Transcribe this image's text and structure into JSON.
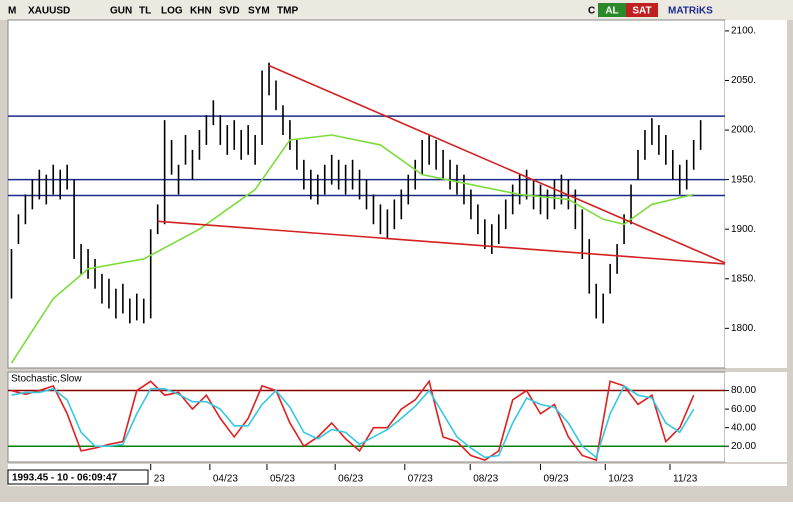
{
  "toolbar": {
    "logo": "M",
    "symbol": "XAUUSD",
    "buttons": [
      "GUN",
      "TL",
      "LOG",
      "KHN",
      "SVD",
      "SYM",
      "TMP"
    ],
    "c": "C",
    "buy": "AL",
    "sell": "SAT",
    "brand": "MATRiKS"
  },
  "status": "1993.45 - 10 - 06:09:47",
  "chart_data": [
    {
      "type": "ohlc",
      "color": "#000000",
      "xlim": [
        -0.5,
        102.5
      ],
      "xticks": [
        {
          "value": 20,
          "label": "23"
        },
        {
          "value": 28.5,
          "label": "04/23"
        },
        {
          "value": 36.7,
          "label": "05/23"
        },
        {
          "value": 46.5,
          "label": "06/23"
        },
        {
          "value": 56.5,
          "label": "07/23"
        },
        {
          "value": 65.9,
          "label": "08/23"
        },
        {
          "value": 76,
          "label": "09/23"
        },
        {
          "value": 85.3,
          "label": "10/23"
        },
        {
          "value": 94.6,
          "label": "11/23"
        }
      ],
      "ylim": [
        1760,
        2111
      ],
      "yticks": [
        {
          "value": 1800,
          "label": "1800."
        },
        {
          "value": 1850,
          "label": "1850."
        },
        {
          "value": 1900,
          "label": "1900."
        },
        {
          "value": 1950,
          "label": "1950."
        },
        {
          "value": 2000,
          "label": "2000."
        },
        {
          "value": 2050,
          "label": "2050."
        },
        {
          "value": 2100,
          "label": "2100."
        }
      ],
      "high": [
        1880,
        1915,
        1935,
        1950,
        1960,
        1955,
        1965,
        1960,
        1965,
        1950,
        1885,
        1880,
        1870,
        1855,
        1850,
        1840,
        1845,
        1830,
        1835,
        1830,
        1900,
        1925,
        2010,
        1990,
        1965,
        1995,
        1980,
        2000,
        2015,
        2030,
        2015,
        2005,
        2010,
        2000,
        2005,
        1995,
        2060,
        2068,
        2050,
        2025,
        2010,
        1990,
        1970,
        1960,
        1955,
        1965,
        1975,
        1970,
        1965,
        1970,
        1960,
        1950,
        1935,
        1925,
        1920,
        1930,
        1940,
        1955,
        1970,
        1990,
        1995,
        1990,
        1980,
        1970,
        1965,
        1955,
        1940,
        1925,
        1910,
        1905,
        1915,
        1930,
        1945,
        1955,
        1960,
        1950,
        1945,
        1940,
        1950,
        1955,
        1950,
        1940,
        1920,
        1890,
        1845,
        1835,
        1865,
        1885,
        1915,
        1945,
        1980,
        2000,
        2012,
        2005,
        1995,
        1980,
        1965,
        1970,
        1990,
        2010
      ],
      "low": [
        1830,
        1885,
        1905,
        1920,
        1930,
        1925,
        1935,
        1930,
        1940,
        1870,
        1855,
        1850,
        1840,
        1825,
        1820,
        1810,
        1815,
        1805,
        1808,
        1805,
        1810,
        1895,
        1905,
        1955,
        1935,
        1965,
        1950,
        1970,
        1985,
        2005,
        1985,
        1975,
        1980,
        1970,
        1975,
        1965,
        1985,
        2035,
        2020,
        1995,
        1980,
        1960,
        1940,
        1930,
        1925,
        1935,
        1945,
        1940,
        1935,
        1940,
        1930,
        1920,
        1905,
        1895,
        1890,
        1900,
        1910,
        1925,
        1940,
        1955,
        1965,
        1960,
        1950,
        1940,
        1935,
        1925,
        1910,
        1895,
        1880,
        1875,
        1885,
        1900,
        1915,
        1925,
        1930,
        1920,
        1915,
        1910,
        1920,
        1925,
        1920,
        1900,
        1870,
        1835,
        1810,
        1805,
        1835,
        1855,
        1885,
        1905,
        1950,
        1970,
        1985,
        1975,
        1965,
        1950,
        1935,
        1940,
        1960,
        1980
      ],
      "ma": {
        "color": "#7ddc3c",
        "x": [
          0,
          6,
          11,
          19,
          27,
          35,
          40,
          46,
          53,
          59,
          66,
          73,
          80,
          85,
          88,
          92,
          98
        ],
        "values": [
          1765,
          1830,
          1860,
          1870,
          1900,
          1940,
          1990,
          1995,
          1985,
          1955,
          1945,
          1935,
          1930,
          1910,
          1905,
          1925,
          1935
        ]
      },
      "levels": {
        "color": "#1c2a8c",
        "values": [
          2014,
          1950,
          1934
        ]
      },
      "trendlines": [
        {
          "color": "#d42020",
          "x": [
            37,
            102.5
          ],
          "values": [
            2065,
            1866
          ]
        },
        {
          "color": "#d42020",
          "x": [
            21,
            102.5
          ],
          "values": [
            1908,
            1865
          ]
        }
      ]
    },
    {
      "type": "line",
      "title": "Stochastic,Slow",
      "xlim": [
        -0.5,
        102.5
      ],
      "ylim": [
        3,
        100
      ],
      "yticks": [
        {
          "value": 20,
          "label": "20.00"
        },
        {
          "value": 40,
          "label": "40.00"
        },
        {
          "value": 60,
          "label": "60.00"
        },
        {
          "value": 80,
          "label": "80.00"
        }
      ],
      "levels": [
        {
          "value": 80,
          "color": "#8b0000"
        },
        {
          "value": 20,
          "color": "#008000"
        }
      ],
      "x": [
        0,
        2,
        4,
        6,
        8,
        10,
        12,
        14,
        16,
        18,
        20,
        22,
        24,
        26,
        28,
        30,
        32,
        34,
        36,
        38,
        40,
        42,
        44,
        46,
        48,
        50,
        52,
        54,
        56,
        58,
        60,
        62,
        64,
        66,
        68,
        70,
        72,
        74,
        76,
        78,
        80,
        82,
        84,
        86,
        88,
        90,
        92,
        94,
        96,
        98
      ],
      "series": [
        {
          "color": "#e02020",
          "values": [
            80,
            76,
            80,
            85,
            55,
            15,
            18,
            22,
            25,
            80,
            90,
            75,
            78,
            60,
            75,
            50,
            30,
            50,
            85,
            80,
            45,
            20,
            30,
            45,
            28,
            15,
            40,
            40,
            60,
            70,
            90,
            30,
            25,
            10,
            5,
            15,
            70,
            80,
            55,
            65,
            30,
            10,
            5,
            90,
            85,
            65,
            75,
            25,
            40,
            75
          ]
        },
        {
          "color": "#35c8e0",
          "values": [
            75,
            78,
            78,
            82,
            70,
            35,
            20,
            20,
            22,
            55,
            82,
            82,
            76,
            68,
            68,
            60,
            42,
            42,
            65,
            80,
            62,
            35,
            28,
            38,
            35,
            22,
            30,
            38,
            50,
            63,
            80,
            55,
            30,
            18,
            8,
            10,
            45,
            72,
            65,
            62,
            45,
            20,
            8,
            55,
            85,
            75,
            72,
            45,
            35,
            60
          ]
        }
      ]
    }
  ]
}
